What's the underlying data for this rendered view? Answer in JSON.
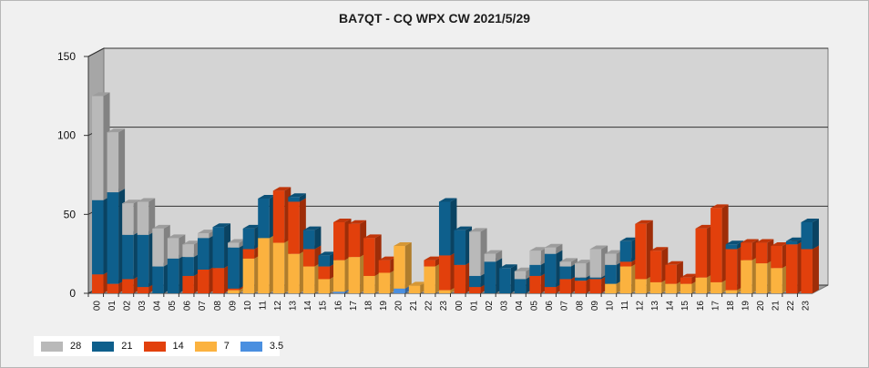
{
  "chart_data": {
    "type": "bar",
    "stacked": true,
    "title": "BA7QT - CQ WPX  CW 2021/5/29",
    "xlabel": "",
    "ylabel": "",
    "ylim": [
      0,
      150
    ],
    "yticks": [
      0,
      50,
      100,
      150
    ],
    "grid": true,
    "legend_position": "bottom-left",
    "categories": [
      "00",
      "01",
      "02",
      "03",
      "04",
      "05",
      "06",
      "07",
      "08",
      "09",
      "10",
      "11",
      "12",
      "13",
      "14",
      "15",
      "16",
      "17",
      "18",
      "19",
      "20",
      "21",
      "22",
      "23",
      "00",
      "01",
      "02",
      "03",
      "04",
      "05",
      "06",
      "07",
      "08",
      "09",
      "10",
      "11",
      "12",
      "13",
      "14",
      "15",
      "16",
      "17",
      "18",
      "19",
      "20",
      "21",
      "22",
      "23"
    ],
    "series": [
      {
        "name": "3.5",
        "color": "#4a8fe0",
        "values": [
          0,
          0,
          0,
          0,
          0,
          0,
          0,
          0,
          0,
          0,
          0,
          0,
          0,
          0,
          0,
          0,
          1,
          0,
          0,
          0,
          3,
          0,
          0,
          0,
          0,
          0,
          0,
          0,
          0,
          0,
          0,
          0,
          0,
          0,
          0,
          0,
          0,
          0,
          0,
          0,
          0,
          0,
          0,
          0,
          0,
          0,
          0,
          0
        ]
      },
      {
        "name": "7",
        "color": "#fbb23f",
        "values": [
          0,
          0,
          0,
          0,
          0,
          0,
          0,
          0,
          0,
          2,
          22,
          35,
          32,
          25,
          17,
          9,
          20,
          23,
          11,
          13,
          27,
          5,
          17,
          2,
          0,
          0,
          0,
          0,
          0,
          0,
          0,
          0,
          0,
          0,
          6,
          17,
          9,
          7,
          6,
          6,
          10,
          7,
          2,
          21,
          19,
          16,
          0,
          0
        ]
      },
      {
        "name": "14",
        "color": "#e2400c",
        "values": [
          12,
          6,
          9,
          4,
          0,
          0,
          11,
          15,
          16,
          1,
          6,
          0,
          33,
          33,
          11,
          8,
          24,
          21,
          24,
          8,
          0,
          0,
          4,
          22,
          18,
          4,
          0,
          0,
          0,
          11,
          4,
          9,
          8,
          9,
          0,
          3,
          35,
          20,
          12,
          4,
          31,
          47,
          26,
          11,
          13,
          14,
          31,
          28
        ]
      },
      {
        "name": "21",
        "color": "#0e5f8c",
        "values": [
          47,
          58,
          28,
          33,
          17,
          22,
          12,
          20,
          26,
          26,
          13,
          25,
          0,
          3,
          12,
          7,
          0,
          0,
          0,
          0,
          0,
          0,
          0,
          34,
          22,
          7,
          20,
          16,
          9,
          7,
          21,
          8,
          2,
          1,
          12,
          13,
          0,
          0,
          0,
          0,
          0,
          0,
          3,
          0,
          0,
          0,
          2,
          17
        ]
      },
      {
        "name": "28",
        "color": "#b9b9b9",
        "values": [
          66,
          38,
          20,
          21,
          24,
          13,
          8,
          3,
          0,
          3,
          0,
          0,
          0,
          0,
          0,
          0,
          0,
          0,
          0,
          0,
          0,
          0,
          0,
          0,
          0,
          28,
          5,
          0,
          5,
          9,
          4,
          3,
          9,
          18,
          7,
          0,
          0,
          0,
          0,
          0,
          0,
          0,
          0,
          0,
          0,
          0,
          0,
          0
        ]
      }
    ]
  }
}
